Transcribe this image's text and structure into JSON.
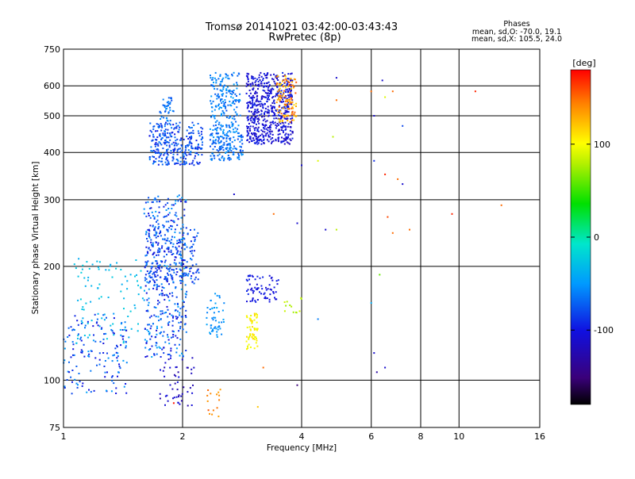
{
  "chart_data": {
    "type": "scatter",
    "title": "Tromsø 20141021 03:42:00-03:43:43",
    "subtitle": "RwPretec (8p)",
    "info": {
      "heading": "Phases",
      "line1": "mean, sd,O: -70.0, 19.1",
      "line2": "mean, sd,X: 105.5, 24.0"
    },
    "xlabel": "Frequency [MHz]",
    "ylabel": "Stationary phase Virtual Height [km]",
    "x_scale": "log",
    "y_scale": "log",
    "xlim": [
      1,
      16
    ],
    "ylim": [
      75,
      750
    ],
    "grid": true,
    "xticks": [
      {
        "value": 1,
        "label": "1"
      },
      {
        "value": 2,
        "label": "2"
      },
      {
        "value": 4,
        "label": "4"
      },
      {
        "value": 6,
        "label": "6"
      },
      {
        "value": 8,
        "label": "8"
      },
      {
        "value": 10,
        "label": "10"
      },
      {
        "value": 16,
        "label": "16"
      }
    ],
    "yticks": [
      {
        "value": 75,
        "label": "75"
      },
      {
        "value": 100,
        "label": "100"
      },
      {
        "value": 200,
        "label": "200"
      },
      {
        "value": 300,
        "label": "300"
      },
      {
        "value": 400,
        "label": "400"
      },
      {
        "value": 500,
        "label": "500"
      },
      {
        "value": 600,
        "label": "600"
      },
      {
        "value": 750,
        "label": "750"
      }
    ],
    "colorbar": {
      "label": "[deg]",
      "range": [
        -180,
        180
      ],
      "ticks": [
        {
          "value": 100,
          "label": "100"
        },
        {
          "value": 0,
          "label": "0"
        },
        {
          "value": -100,
          "label": "-100"
        }
      ]
    },
    "clusters": [
      {
        "x": [
          1.0,
          1.45
        ],
        "y": [
          92,
          150
        ],
        "phase": [
          -105,
          -45
        ],
        "n": 150
      },
      {
        "x": [
          1.05,
          1.6
        ],
        "y": [
          125,
          210
        ],
        "phase": [
          -40,
          -20
        ],
        "n": 90
      },
      {
        "x": [
          1.6,
          2.05
        ],
        "y": [
          115,
          310
        ],
        "phase": [
          -110,
          -40
        ],
        "n": 420
      },
      {
        "x": [
          1.6,
          2.2
        ],
        "y": [
          180,
          250
        ],
        "phase": [
          -100,
          -60
        ],
        "n": 180
      },
      {
        "x": [
          1.65,
          2.25
        ],
        "y": [
          370,
          480
        ],
        "phase": [
          -100,
          -60
        ],
        "n": 300
      },
      {
        "x": [
          1.75,
          1.9
        ],
        "y": [
          480,
          560
        ],
        "phase": [
          -80,
          -50
        ],
        "n": 40
      },
      {
        "x": [
          2.3,
          2.55
        ],
        "y": [
          130,
          170
        ],
        "phase": [
          -60,
          -40
        ],
        "n": 50
      },
      {
        "x": [
          2.35,
          2.85
        ],
        "y": [
          380,
          450
        ],
        "phase": [
          -80,
          -50
        ],
        "n": 150
      },
      {
        "x": [
          2.35,
          2.8
        ],
        "y": [
          450,
          650
        ],
        "phase": [
          -75,
          -45
        ],
        "n": 200
      },
      {
        "x": [
          2.9,
          3.8
        ],
        "y": [
          420,
          650
        ],
        "phase": [
          -120,
          -90
        ],
        "n": 600
      },
      {
        "x": [
          3.45,
          3.9
        ],
        "y": [
          480,
          640
        ],
        "phase": [
          110,
          160
        ],
        "n": 110
      },
      {
        "x": [
          2.9,
          3.1
        ],
        "y": [
          120,
          150
        ],
        "phase": [
          90,
          115
        ],
        "n": 60
      },
      {
        "x": [
          2.9,
          3.5
        ],
        "y": [
          160,
          190
        ],
        "phase": [
          -110,
          -90
        ],
        "n": 70
      },
      {
        "x": [
          1.75,
          2.15
        ],
        "y": [
          85,
          115
        ],
        "phase": [
          -130,
          -100
        ],
        "n": 50
      },
      {
        "x": [
          2.3,
          2.5
        ],
        "y": [
          80,
          95
        ],
        "phase": [
          130,
          160
        ],
        "n": 15
      },
      {
        "x": [
          3.6,
          4.0
        ],
        "y": [
          150,
          165
        ],
        "phase": [
          70,
          90
        ],
        "n": 12
      }
    ],
    "points": [
      {
        "x": 4.9,
        "y": 630,
        "phase": -110
      },
      {
        "x": 4.9,
        "y": 550,
        "phase": 150
      },
      {
        "x": 4.8,
        "y": 440,
        "phase": 80
      },
      {
        "x": 6.0,
        "y": 580,
        "phase": 150
      },
      {
        "x": 6.1,
        "y": 500,
        "phase": -110
      },
      {
        "x": 6.4,
        "y": 620,
        "phase": -110
      },
      {
        "x": 6.5,
        "y": 560,
        "phase": 90
      },
      {
        "x": 6.8,
        "y": 580,
        "phase": 150
      },
      {
        "x": 7.2,
        "y": 470,
        "phase": -80
      },
      {
        "x": 6.1,
        "y": 380,
        "phase": -90
      },
      {
        "x": 6.5,
        "y": 350,
        "phase": 170
      },
      {
        "x": 7.0,
        "y": 340,
        "phase": 150
      },
      {
        "x": 7.2,
        "y": 330,
        "phase": -110
      },
      {
        "x": 11.0,
        "y": 580,
        "phase": 170
      },
      {
        "x": 4.0,
        "y": 370,
        "phase": -110
      },
      {
        "x": 4.4,
        "y": 380,
        "phase": 90
      },
      {
        "x": 3.9,
        "y": 260,
        "phase": -110
      },
      {
        "x": 4.6,
        "y": 250,
        "phase": -110
      },
      {
        "x": 4.9,
        "y": 250,
        "phase": 80
      },
      {
        "x": 6.6,
        "y": 270,
        "phase": 160
      },
      {
        "x": 6.8,
        "y": 245,
        "phase": 150
      },
      {
        "x": 7.5,
        "y": 250,
        "phase": 150
      },
      {
        "x": 9.6,
        "y": 275,
        "phase": 170
      },
      {
        "x": 12.8,
        "y": 290,
        "phase": 150
      },
      {
        "x": 2.7,
        "y": 310,
        "phase": -110
      },
      {
        "x": 3.4,
        "y": 275,
        "phase": 150
      },
      {
        "x": 4.4,
        "y": 145,
        "phase": -60
      },
      {
        "x": 6.0,
        "y": 160,
        "phase": -40
      },
      {
        "x": 6.3,
        "y": 190,
        "phase": 60
      },
      {
        "x": 6.2,
        "y": 105,
        "phase": -130
      },
      {
        "x": 6.5,
        "y": 108,
        "phase": -110
      },
      {
        "x": 6.1,
        "y": 118,
        "phase": -110
      },
      {
        "x": 3.2,
        "y": 108,
        "phase": 150
      },
      {
        "x": 3.9,
        "y": 97,
        "phase": -150
      },
      {
        "x": 3.1,
        "y": 85,
        "phase": 120
      },
      {
        "x": 1.9,
        "y": 87,
        "phase": 175
      }
    ]
  }
}
